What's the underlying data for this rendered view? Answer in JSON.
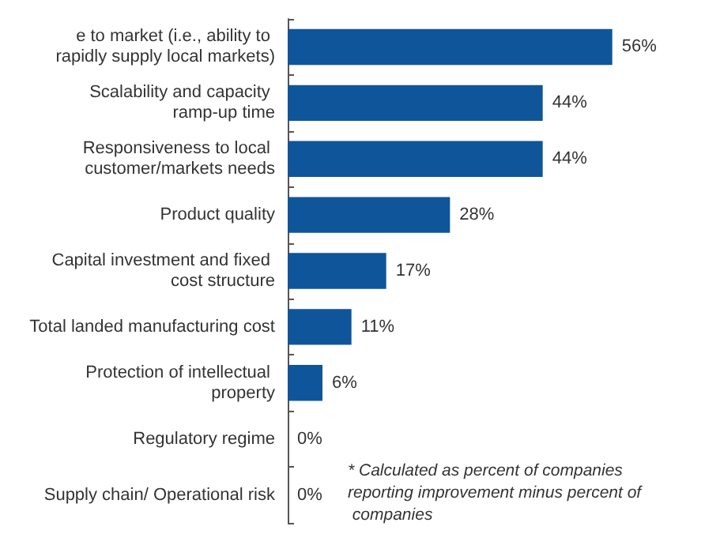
{
  "chart_data": {
    "type": "bar",
    "orientation": "horizontal",
    "categories": [
      "e to market (i.e., ability to rapidly supply local markets)",
      "Scalability and capacity ramp-up time",
      "Responsiveness to local customer/markets needs",
      "Product quality",
      "Capital investment and fixed cost structure",
      "Total landed manufacturing cost",
      "Protection of intellectual property",
      "Regulatory regime",
      "Supply chain/ Operational risk"
    ],
    "values": [
      56,
      44,
      44,
      28,
      17,
      11,
      6,
      0,
      0
    ],
    "value_labels": [
      "56%",
      "44%",
      "44%",
      "28%",
      "17%",
      "11%",
      "6%",
      "0%",
      "0%"
    ],
    "color": "#0f559a",
    "annotations": [
      "* Calculated as percent of companies reporting improvement minus percent of companies"
    ]
  }
}
